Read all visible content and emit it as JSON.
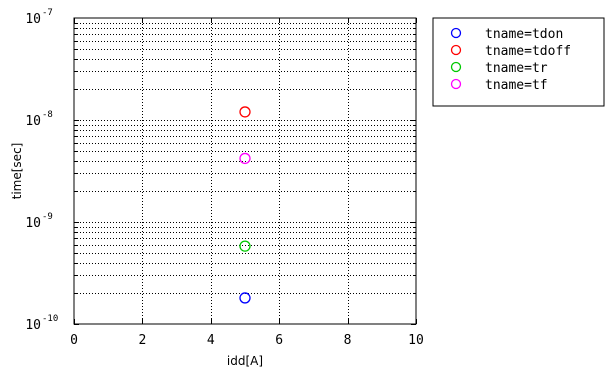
{
  "chart_data": {
    "type": "scatter",
    "title": "",
    "xlabel": "idd[A]",
    "ylabel": "time[sec]",
    "xlim": [
      0,
      10
    ],
    "ylim": [
      1e-10,
      1e-07
    ],
    "yscale": "log",
    "grid": true,
    "legend_position": "outside-top-right",
    "x_ticks": [
      {
        "value": 0,
        "label": "0"
      },
      {
        "value": 2,
        "label": "2"
      },
      {
        "value": 4,
        "label": "4"
      },
      {
        "value": 6,
        "label": "6"
      },
      {
        "value": 8,
        "label": "8"
      },
      {
        "value": 10,
        "label": "10"
      }
    ],
    "y_ticks": [
      {
        "value": 1e-10,
        "base": "10",
        "exp": "-10"
      },
      {
        "value": 1e-09,
        "base": "10",
        "exp": "-9"
      },
      {
        "value": 1e-08,
        "base": "10",
        "exp": "-8"
      },
      {
        "value": 1e-07,
        "base": "10",
        "exp": "-7"
      }
    ],
    "series": [
      {
        "name": "tname=tdon",
        "color": "#0000ff",
        "marker": "circle",
        "x": [
          5
        ],
        "y": [
          1.8e-10
        ]
      },
      {
        "name": "tname=tdoff",
        "color": "#ff0000",
        "marker": "circle",
        "x": [
          5
        ],
        "y": [
          1.2e-08
        ]
      },
      {
        "name": "tname=tr",
        "color": "#00c800",
        "marker": "circle",
        "x": [
          5
        ],
        "y": [
          5.8e-10
        ]
      },
      {
        "name": "tname=tf",
        "color": "#ff00ff",
        "marker": "circle",
        "x": [
          5
        ],
        "y": [
          4.2e-09
        ]
      }
    ]
  }
}
